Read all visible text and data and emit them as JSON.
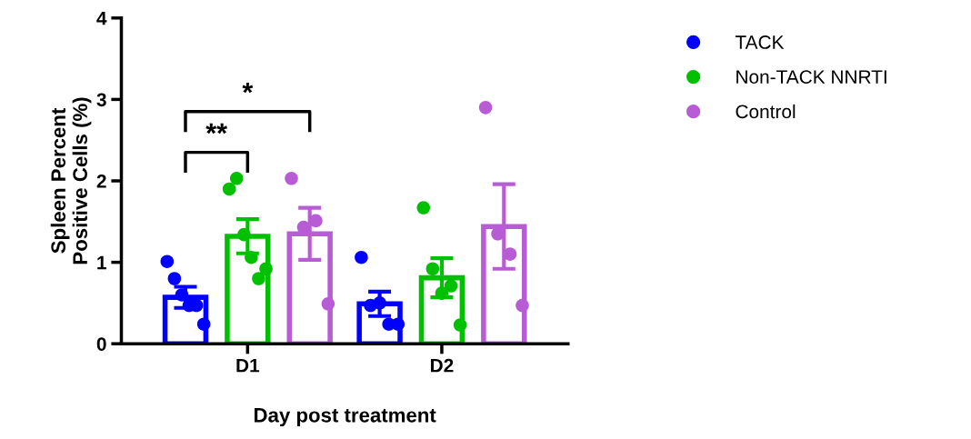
{
  "chart_data": {
    "type": "bar",
    "xlabel": "Day post treatment",
    "ylabel": "Spleen Percent\nPositive Cells (%)",
    "categories": [
      "D1",
      "D2"
    ],
    "ylim": [
      0,
      4
    ],
    "yticks": [
      0,
      1,
      2,
      3,
      4
    ],
    "grid": false,
    "legend": "right",
    "marker": "circle",
    "annotations": [
      "**",
      "*"
    ],
    "series": [
      {
        "name": "TACK",
        "color": "#0000ff",
        "values": [
          0.57,
          0.49
        ],
        "errors": [
          0.13,
          0.15
        ]
      },
      {
        "name": "Non-TACK NNRTI",
        "color": "#00c000",
        "values": [
          1.32,
          0.81
        ],
        "errors": [
          0.21,
          0.24
        ]
      },
      {
        "name": "Control",
        "color": "#b85cd6",
        "values": [
          1.35,
          1.44
        ],
        "errors": [
          0.32,
          0.52
        ]
      },
      {
        "type": "scatter",
        "color": "#0000ff",
        "x": [
          "D1",
          "D1",
          "D1",
          "D1",
          "D1",
          "D1",
          "D2",
          "D2",
          "D2",
          "D2",
          "D2"
        ],
        "values": [
          1.01,
          0.8,
          0.6,
          0.47,
          0.47,
          0.24,
          1.06,
          0.47,
          0.5,
          0.24,
          0.24
        ]
      },
      {
        "type": "scatter",
        "color": "#00c000",
        "x": [
          "D1",
          "D1",
          "D1",
          "D1",
          "D1",
          "D1",
          "D2",
          "D2",
          "D2",
          "D2",
          "D2"
        ],
        "values": [
          1.9,
          2.03,
          1.34,
          1.06,
          0.8,
          0.92,
          1.67,
          0.92,
          0.62,
          0.71,
          0.23
        ]
      },
      {
        "type": "scatter",
        "color": "#b85cd6",
        "x": [
          "D1",
          "D1",
          "D1",
          "D1",
          "D2",
          "D2",
          "D2",
          "D2"
        ],
        "values": [
          2.03,
          1.43,
          1.51,
          0.49,
          2.9,
          1.35,
          1.1,
          0.47
        ]
      }
    ]
  }
}
